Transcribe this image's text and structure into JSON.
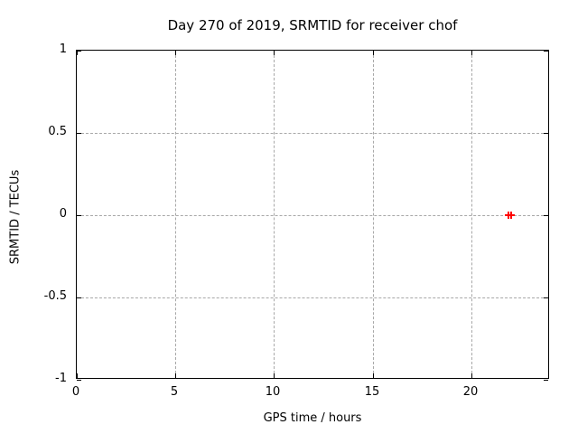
{
  "chart_data": {
    "type": "scatter",
    "title": "Day 270 of 2019, SRMTID for receiver chof",
    "xlabel": "GPS time / hours",
    "ylabel": "SRMTID / TECUs",
    "xlim": [
      0,
      24
    ],
    "ylim": [
      -1,
      1
    ],
    "grid": true,
    "legend": "none",
    "xticks": [
      {
        "value": 0,
        "label": "0"
      },
      {
        "value": 5,
        "label": "5"
      },
      {
        "value": 10,
        "label": "10"
      },
      {
        "value": 15,
        "label": "15"
      },
      {
        "value": 20,
        "label": "20"
      }
    ],
    "yticks": [
      {
        "value": -1,
        "label": "-1"
      },
      {
        "value": -0.5,
        "label": "-0.5"
      },
      {
        "value": 0,
        "label": "0"
      },
      {
        "value": 0.5,
        "label": "0.5"
      },
      {
        "value": 1,
        "label": "1"
      }
    ],
    "series": [
      {
        "name": "SRMTID",
        "marker": "plus",
        "color": "#ff0000",
        "points": [
          {
            "x": 21.9,
            "y": 0
          },
          {
            "x": 22.05,
            "y": 0
          }
        ]
      }
    ],
    "colors": {
      "border": "#000000",
      "grid": "#a8a8a8",
      "text": "#000000",
      "background": "#ffffff"
    }
  }
}
